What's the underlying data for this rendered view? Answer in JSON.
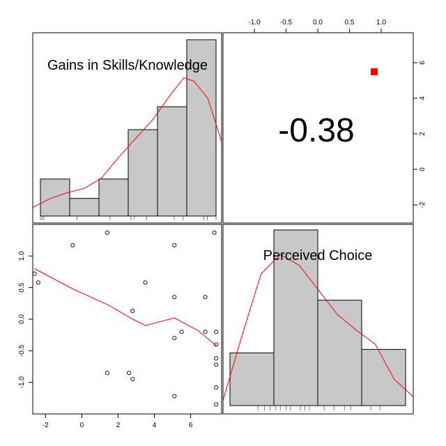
{
  "chart_data": [
    {
      "type": "histogram",
      "variable": "Gains in Skills/Knowledge",
      "title": "Gains in Skills/Knowledge",
      "bins": [
        [
          -2.5,
          -1.5
        ],
        [
          -1.5,
          0
        ],
        [
          0,
          1.5
        ],
        [
          1.5,
          3
        ],
        [
          3,
          4.5
        ],
        [
          4.5,
          6
        ]
      ],
      "relative_heights": [
        0.21,
        0.1,
        0.21,
        0.49,
        0.62,
        1.0
      ],
      "density_curve": [
        [
          -3.0,
          0.05
        ],
        [
          -2.0,
          0.1
        ],
        [
          -1.0,
          0.135
        ],
        [
          0.0,
          0.16
        ],
        [
          1.0,
          0.22
        ],
        [
          2.0,
          0.34
        ],
        [
          3.0,
          0.45
        ],
        [
          4.0,
          0.56
        ],
        [
          5.0,
          0.7
        ],
        [
          5.8,
          0.8
        ],
        [
          6.4,
          0.78
        ],
        [
          7.2,
          0.68
        ],
        [
          8.0,
          0.43
        ]
      ],
      "rug_values": [
        -2.6,
        -2.5,
        -2.4,
        -0.5,
        1.4,
        2.6,
        2.8,
        3.5,
        5.1,
        5.6,
        6.8,
        7.0,
        7.5
      ]
    },
    {
      "type": "text",
      "title": "correlation",
      "value": "-0.38",
      "marker_color": "#ff0000"
    },
    {
      "type": "scatter",
      "x_label": "",
      "y_label": "",
      "xlim": [
        -2.7,
        7.7
      ],
      "ylim": [
        -1.5,
        1.5
      ],
      "x_ticks": [
        "-2",
        "0",
        "2",
        "4",
        "6"
      ],
      "y_ticks": [
        "-1.0",
        "-0.5",
        "0.0",
        "0.5",
        "1.0"
      ],
      "points": [
        [
          -2.6,
          0.72
        ],
        [
          -2.4,
          0.58
        ],
        [
          -0.5,
          1.17
        ],
        [
          1.4,
          1.37
        ],
        [
          1.4,
          -0.85
        ],
        [
          2.6,
          -0.85
        ],
        [
          2.8,
          -0.95
        ],
        [
          2.8,
          0.13
        ],
        [
          3.5,
          0.58
        ],
        [
          5.1,
          1.17
        ],
        [
          5.1,
          0.35
        ],
        [
          5.1,
          -0.3
        ],
        [
          5.1,
          -1.22
        ],
        [
          5.5,
          -0.2
        ],
        [
          6.8,
          0.35
        ],
        [
          6.8,
          -0.2
        ],
        [
          7.3,
          1.37
        ],
        [
          7.4,
          -0.2
        ],
        [
          7.4,
          -0.4
        ],
        [
          7.4,
          -0.62
        ],
        [
          7.4,
          -0.72
        ],
        [
          7.4,
          -1.08
        ],
        [
          7.4,
          -1.35
        ]
      ],
      "smooth_curve": [
        [
          -2.6,
          0.8
        ],
        [
          -0.5,
          0.48
        ],
        [
          1.5,
          0.22
        ],
        [
          2.8,
          0.0
        ],
        [
          3.5,
          -0.1
        ],
        [
          5.1,
          0.02
        ],
        [
          6.4,
          -0.18
        ],
        [
          7.4,
          -0.42
        ]
      ],
      "line_color": "#ff0000"
    },
    {
      "type": "histogram",
      "variable": "Perceived Choice",
      "title": "Perceived Choice",
      "bins": [
        [
          -1.5,
          -1.0
        ],
        [
          -1.0,
          -0.5
        ],
        [
          -0.5,
          0.0
        ],
        [
          0.0,
          0.5
        ]
      ],
      "relative_heights": [
        0.3,
        1.0,
        0.6,
        0.32
      ],
      "density_curve": [
        [
          -1.5,
          0.03
        ],
        [
          -1.25,
          0.4
        ],
        [
          -1.0,
          0.75
        ],
        [
          -0.75,
          0.86
        ],
        [
          -0.5,
          0.8
        ],
        [
          -0.25,
          0.66
        ],
        [
          0.0,
          0.52
        ],
        [
          0.25,
          0.43
        ],
        [
          0.5,
          0.35
        ],
        [
          0.75,
          0.15
        ],
        [
          1.0,
          0.05
        ]
      ],
      "rug_values": [
        -1.35,
        -1.2,
        -1.08,
        -0.95,
        -0.85,
        -0.72,
        -0.62,
        -0.4,
        -0.3,
        -0.2,
        0.13,
        0.35,
        0.58,
        0.72,
        1.17,
        1.37
      ]
    }
  ],
  "top_axis_ticks": [
    "-1.0",
    "-0.5",
    "0.0",
    "0.5",
    "1.0"
  ],
  "right_axis_ticks": [
    "6",
    "4",
    "2",
    "0",
    "-2"
  ]
}
